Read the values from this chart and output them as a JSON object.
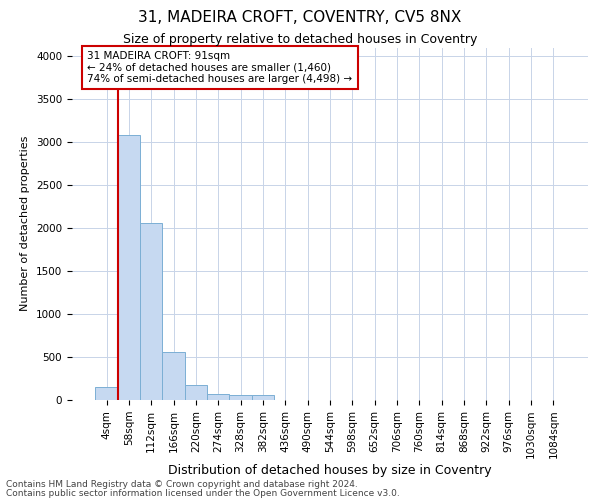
{
  "title1": "31, MADEIRA CROFT, COVENTRY, CV5 8NX",
  "title2": "Size of property relative to detached houses in Coventry",
  "xlabel": "Distribution of detached houses by size in Coventry",
  "ylabel": "Number of detached properties",
  "footnote1": "Contains HM Land Registry data © Crown copyright and database right 2024.",
  "footnote2": "Contains public sector information licensed under the Open Government Licence v3.0.",
  "bin_labels": [
    "4sqm",
    "58sqm",
    "112sqm",
    "166sqm",
    "220sqm",
    "274sqm",
    "328sqm",
    "382sqm",
    "436sqm",
    "490sqm",
    "544sqm",
    "598sqm",
    "652sqm",
    "706sqm",
    "760sqm",
    "814sqm",
    "868sqm",
    "922sqm",
    "976sqm",
    "1030sqm",
    "1084sqm"
  ],
  "bar_values": [
    150,
    3080,
    2060,
    560,
    180,
    75,
    55,
    55,
    0,
    0,
    0,
    0,
    0,
    0,
    0,
    0,
    0,
    0,
    0,
    0,
    0
  ],
  "bar_color": "#c6d9f1",
  "bar_edge_color": "#7bafd4",
  "vline_x": 1,
  "vline_color": "#cc0000",
  "annotation_text": "31 MADEIRA CROFT: 91sqm\n← 24% of detached houses are smaller (1,460)\n74% of semi-detached houses are larger (4,498) →",
  "annotation_box_color": "#ffffff",
  "annotation_box_edge_color": "#cc0000",
  "ylim": [
    0,
    4100
  ],
  "yticks": [
    0,
    500,
    1000,
    1500,
    2000,
    2500,
    3000,
    3500,
    4000
  ],
  "bg_color": "#ffffff",
  "grid_color": "#c8d4e8",
  "title1_fontsize": 11,
  "title2_fontsize": 9,
  "xlabel_fontsize": 9,
  "ylabel_fontsize": 8,
  "tick_fontsize": 7.5,
  "annot_fontsize": 7.5,
  "footnote_fontsize": 6.5
}
